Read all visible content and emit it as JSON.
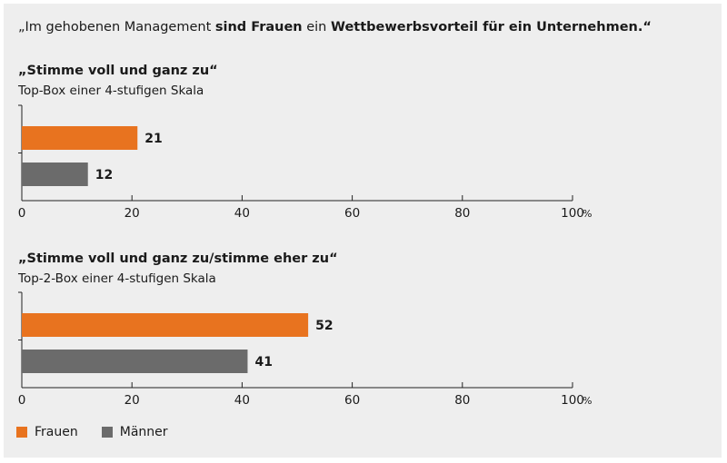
{
  "headline": {
    "parts": [
      {
        "text": "„Im gehobenen Management ",
        "bold": false
      },
      {
        "text": "sind Frauen",
        "bold": true
      },
      {
        "text": " ein ",
        "bold": false
      },
      {
        "text": "Wettbewerbsvorteil für ein Unternehmen.“",
        "bold": true
      }
    ]
  },
  "colors": {
    "frauen": "#e8731f",
    "maenner": "#6b6b6b",
    "axis": "#222222",
    "background": "#eeeeee"
  },
  "legend": [
    {
      "label": "Frauen",
      "color": "#e8731f"
    },
    {
      "label": "Männer",
      "color": "#6b6b6b"
    }
  ],
  "chart_data": [
    {
      "type": "bar",
      "orientation": "horizontal",
      "title": "„Stimme voll und ganz zu“",
      "subtitle": "Top-Box einer 4-stufigen Skala",
      "categories": [
        "Frauen",
        "Männer"
      ],
      "values": [
        21,
        12
      ],
      "colors": [
        "#e8731f",
        "#6b6b6b"
      ],
      "xlim": [
        0,
        100
      ],
      "xticks": [
        0,
        20,
        40,
        60,
        80,
        100
      ],
      "unit": "%",
      "grid": false
    },
    {
      "type": "bar",
      "orientation": "horizontal",
      "title": "„Stimme voll und ganz zu/stimme eher zu“",
      "subtitle": "Top-2-Box einer 4-stufigen Skala",
      "categories": [
        "Frauen",
        "Männer"
      ],
      "values": [
        52,
        41
      ],
      "colors": [
        "#e8731f",
        "#6b6b6b"
      ],
      "xlim": [
        0,
        100
      ],
      "xticks": [
        0,
        20,
        40,
        60,
        80,
        100
      ],
      "unit": "%",
      "grid": false
    }
  ]
}
